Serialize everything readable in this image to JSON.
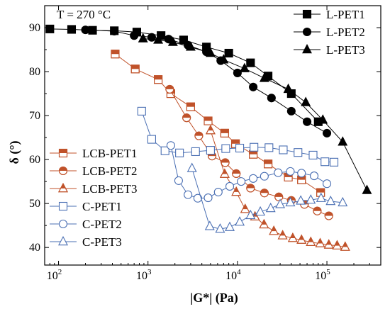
{
  "chart_data": {
    "type": "scatter",
    "annotation": "T = 270 °C",
    "xlabel": "|G*| (Pa)",
    "ylabel": "δ (°)",
    "xscale": "log",
    "xlim": [
      70,
      400000
    ],
    "ylim": [
      36,
      95
    ],
    "xticks": [
      100,
      1000,
      10000,
      100000
    ],
    "xtick_labels": [
      {
        "base": "10",
        "exp": "2"
      },
      {
        "base": "10",
        "exp": "3"
      },
      {
        "base": "10",
        "exp": "4"
      },
      {
        "base": "10",
        "exp": "5"
      }
    ],
    "yticks": [
      40,
      50,
      60,
      70,
      80,
      90
    ],
    "legend_top_right": [
      "L-PET1",
      "L-PET2",
      "L-PET3"
    ],
    "legend_lower_left": [
      "LCB-PET1",
      "LCB-PET2",
      "LCB-PET3",
      "C-PET1",
      "C-PET2",
      "C-PET3"
    ],
    "series": [
      {
        "name": "L-PET1",
        "marker": "square-filled",
        "color": "#000000",
        "x": [
          80,
          140,
          240,
          420,
          750,
          1400,
          2500,
          4500,
          8000,
          14000,
          22000,
          40000,
          80000
        ],
        "y": [
          89.7,
          89.6,
          89.4,
          89.3,
          89.0,
          88.2,
          87.2,
          85.6,
          84.2,
          82.0,
          79.0,
          75.0,
          68.6
        ]
      },
      {
        "name": "L-PET2",
        "marker": "circle-filled",
        "color": "#000000",
        "x": [
          200,
          420,
          700,
          1100,
          1700,
          2800,
          4500,
          6500,
          10000,
          15000,
          24000,
          40000,
          60000,
          100000
        ],
        "y": [
          89.5,
          89.2,
          88.2,
          87.8,
          87.4,
          86.0,
          84.5,
          82.5,
          79.7,
          76.5,
          74.0,
          71.0,
          68.6,
          66.0
        ]
      },
      {
        "name": "L-PET3",
        "marker": "triangle-filled",
        "color": "#000000",
        "x": [
          880,
          1300,
          1900,
          3000,
          5000,
          7000,
          12000,
          20000,
          37000,
          58000,
          90000,
          150000,
          280000
        ],
        "y": [
          87.5,
          87.2,
          86.7,
          85.6,
          84.2,
          82.7,
          80.7,
          78.5,
          76.0,
          73.0,
          69.0,
          64.0,
          53.0
        ]
      },
      {
        "name": "LCB-PET1",
        "marker": "square-half",
        "color": "#c0522a",
        "x": [
          430,
          720,
          1300,
          1800,
          3000,
          4700,
          7200,
          9500,
          15000,
          22000,
          37000,
          52000,
          85000
        ],
        "y": [
          84.0,
          80.6,
          78.2,
          75.0,
          72.0,
          68.8,
          66.0,
          63.6,
          61.2,
          59.0,
          56.0,
          55.4,
          52.5
        ]
      },
      {
        "name": "LCB-PET2",
        "marker": "circle-half",
        "color": "#c0522a",
        "x": [
          1750,
          2700,
          3700,
          5200,
          7300,
          9700,
          14000,
          20000,
          29000,
          40000,
          56000,
          78000,
          105000
        ],
        "y": [
          76.0,
          69.5,
          65.4,
          60.8,
          59.3,
          56.8,
          53.5,
          52.4,
          51.5,
          50.7,
          49.8,
          48.3,
          47.2
        ]
      },
      {
        "name": "LCB-PET3",
        "marker": "triangle-half",
        "color": "#c0522a",
        "x": [
          5000,
          7200,
          9700,
          12200,
          15700,
          19800,
          25500,
          32000,
          41500,
          52000,
          66000,
          84000,
          105000,
          130000,
          160000
        ],
        "y": [
          66.6,
          56.7,
          52.6,
          48.7,
          47.0,
          45.2,
          43.7,
          42.7,
          42.1,
          41.7,
          41.2,
          40.9,
          40.6,
          40.4,
          40.1
        ]
      },
      {
        "name": "C-PET1",
        "marker": "square-open",
        "color": "#4a6fb3",
        "x": [
          850,
          1100,
          1550,
          2250,
          3400,
          5000,
          7400,
          10600,
          15300,
          22500,
          32500,
          47500,
          70000,
          95000,
          120000
        ],
        "y": [
          71.0,
          64.6,
          62.0,
          61.5,
          61.8,
          62.1,
          62.5,
          62.6,
          62.8,
          62.7,
          62.2,
          61.6,
          61.0,
          59.5,
          59.4
        ]
      },
      {
        "name": "C-PET2",
        "marker": "circle-open",
        "color": "#4a6fb3",
        "x": [
          1800,
          2200,
          2800,
          3600,
          4700,
          6100,
          8200,
          11000,
          15000,
          20000,
          28500,
          39000,
          52000,
          72000,
          100000
        ],
        "y": [
          63.2,
          55.2,
          52.0,
          51.2,
          51.3,
          52.6,
          53.9,
          55.0,
          55.7,
          56.2,
          57.0,
          57.3,
          56.9,
          56.3,
          54.5
        ]
      },
      {
        "name": "C-PET3",
        "marker": "triangle-open",
        "color": "#4a6fb3",
        "x": [
          3100,
          4900,
          6400,
          8200,
          10600,
          14000,
          18000,
          23500,
          30000,
          39000,
          51000,
          66000,
          86000,
          110000,
          150000
        ],
        "y": [
          58.0,
          44.8,
          44.2,
          44.6,
          45.8,
          47.3,
          48.1,
          48.9,
          49.8,
          50.2,
          50.6,
          50.8,
          51.2,
          50.5,
          50.2
        ]
      }
    ]
  }
}
